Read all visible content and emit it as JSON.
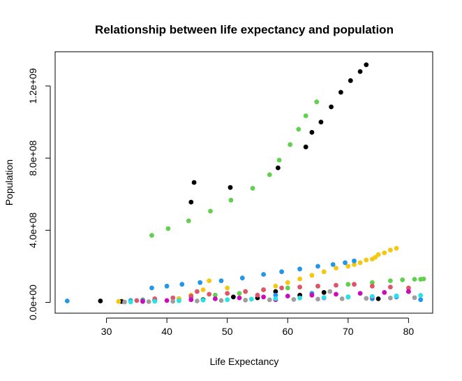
{
  "chart_data": {
    "type": "scatter",
    "title": "Relationship between life expectancy and population",
    "xlabel": "Life Expectancy",
    "ylabel": "Population",
    "xlim": [
      21.5,
      84.0
    ],
    "ylim": [
      -60000000,
      1390000000
    ],
    "x_ticks": [
      30,
      40,
      50,
      60,
      70,
      80
    ],
    "x_tick_labels": [
      "30",
      "40",
      "50",
      "60",
      "70",
      "80"
    ],
    "y_ticks": [
      0,
      400000000,
      800000000,
      1200000000
    ],
    "y_tick_labels": [
      "0.0e+00",
      "4.0e+08",
      "8.0e+08",
      "1.2e+09"
    ],
    "grid": false,
    "legend": "none",
    "series": [
      {
        "color": "#000000",
        "x": [
          44.0,
          44.5,
          50.5,
          58.4,
          63.0,
          64.0,
          65.5,
          67.2,
          68.8,
          70.4,
          72.0,
          73.0,
          29.0,
          32.5,
          38.0,
          42.0,
          46.0,
          51.0,
          55.0,
          58.0,
          62.0,
          66.0,
          70.0,
          75.0,
          80.0
        ],
        "y": [
          556000000,
          665000000,
          637000000,
          746000000,
          862000000,
          943000000,
          1000000000,
          1084000000,
          1165000000,
          1230000000,
          1280000000,
          1318000000,
          8000000,
          5000000,
          12000000,
          20000000,
          15000000,
          30000000,
          25000000,
          60000000,
          40000000,
          55000000,
          30000000,
          20000000,
          60000000
        ]
      },
      {
        "color": "#61d04f",
        "x": [
          37.5,
          40.2,
          43.6,
          47.2,
          50.6,
          54.2,
          57.0,
          58.6,
          60.4,
          61.8,
          63.0,
          64.8,
          52.0,
          56.0,
          60.0,
          65.0,
          70.0,
          74.0,
          77.0,
          79.0,
          81.0,
          82.0,
          82.5,
          48.0
        ],
        "y": [
          372000000,
          409000000,
          452000000,
          506000000,
          567000000,
          633000000,
          708000000,
          789000000,
          875000000,
          960000000,
          1035000000,
          1112000000,
          50000000,
          70000000,
          80000000,
          90000000,
          100000000,
          110000000,
          120000000,
          125000000,
          128000000,
          128000000,
          130000000,
          40000000
        ]
      },
      {
        "color": "#f5c710",
        "x": [
          42.0,
          44.0,
          46.0,
          47.0,
          50.0,
          53.0,
          56.0,
          58.0,
          60.0,
          62.0,
          64.0,
          66.0,
          68.0,
          70.0,
          71.0,
          72.0,
          73.0,
          74.0,
          74.5,
          75.0,
          76.0,
          77.0,
          78.0,
          32.0,
          36.0
        ],
        "y": [
          20000000,
          40000000,
          70000000,
          120000000,
          80000000,
          60000000,
          70000000,
          90000000,
          110000000,
          130000000,
          150000000,
          170000000,
          190000000,
          200000000,
          210000000,
          220000000,
          235000000,
          240000000,
          250000000,
          265000000,
          275000000,
          290000000,
          300000000,
          5000000,
          15000000
        ]
      },
      {
        "color": "#2297e6",
        "x": [
          23.5,
          37.5,
          40.0,
          42.5,
          45.5,
          49.0,
          52.5,
          56.0,
          59.0,
          62.0,
          65.0,
          67.5,
          69.5,
          71.0,
          34.0,
          36.0,
          44.0,
          48.0,
          58.0,
          64.0,
          74.0,
          78.0,
          82.0
        ],
        "y": [
          8000000,
          80000000,
          90000000,
          100000000,
          110000000,
          120000000,
          135000000,
          155000000,
          170000000,
          185000000,
          200000000,
          210000000,
          220000000,
          230000000,
          10000000,
          12000000,
          30000000,
          20000000,
          40000000,
          50000000,
          20000000,
          30000000,
          15000000
        ]
      },
      {
        "color": "#df536b",
        "x": [
          35.0,
          38.0,
          41.0,
          44.0,
          47.0,
          50.0,
          53.0,
          56.0,
          59.0,
          62.0,
          65.0,
          68.0,
          71.0,
          74.0,
          77.0,
          80.0,
          45.0,
          55.0
        ],
        "y": [
          10000000,
          20000000,
          25000000,
          35000000,
          45000000,
          50000000,
          60000000,
          70000000,
          80000000,
          85000000,
          90000000,
          95000000,
          100000000,
          90000000,
          85000000,
          80000000,
          60000000,
          40000000
        ]
      },
      {
        "color": "#cd0bbc",
        "x": [
          36.0,
          40.0,
          44.0,
          48.0,
          52.0,
          56.0,
          60.0,
          64.0,
          68.0,
          72.0,
          76.0,
          80.0,
          58.0,
          66.0,
          74.0
        ],
        "y": [
          5000000,
          10000000,
          15000000,
          20000000,
          25000000,
          30000000,
          35000000,
          40000000,
          45000000,
          50000000,
          55000000,
          60000000,
          15000000,
          25000000,
          30000000
        ]
      },
      {
        "color": "#28e2e5",
        "x": [
          34.0,
          38.0,
          42.0,
          46.0,
          50.0,
          54.0,
          58.0,
          62.0,
          66.0,
          70.0,
          74.0,
          78.0,
          82.0
        ],
        "y": [
          3000000,
          6000000,
          9000000,
          12000000,
          15000000,
          18000000,
          21000000,
          24000000,
          27000000,
          30000000,
          33000000,
          36000000,
          39000000
        ]
      },
      {
        "color": "#9e9e9e",
        "x": [
          33.0,
          37.0,
          41.0,
          45.0,
          49.0,
          53.0,
          57.0,
          61.0,
          65.0,
          69.0,
          73.0,
          77.0,
          81.0,
          67.0
        ],
        "y": [
          2000000,
          4000000,
          6000000,
          8000000,
          10000000,
          12000000,
          14000000,
          16000000,
          18000000,
          20000000,
          22000000,
          24000000,
          26000000,
          60000000
        ]
      }
    ]
  }
}
